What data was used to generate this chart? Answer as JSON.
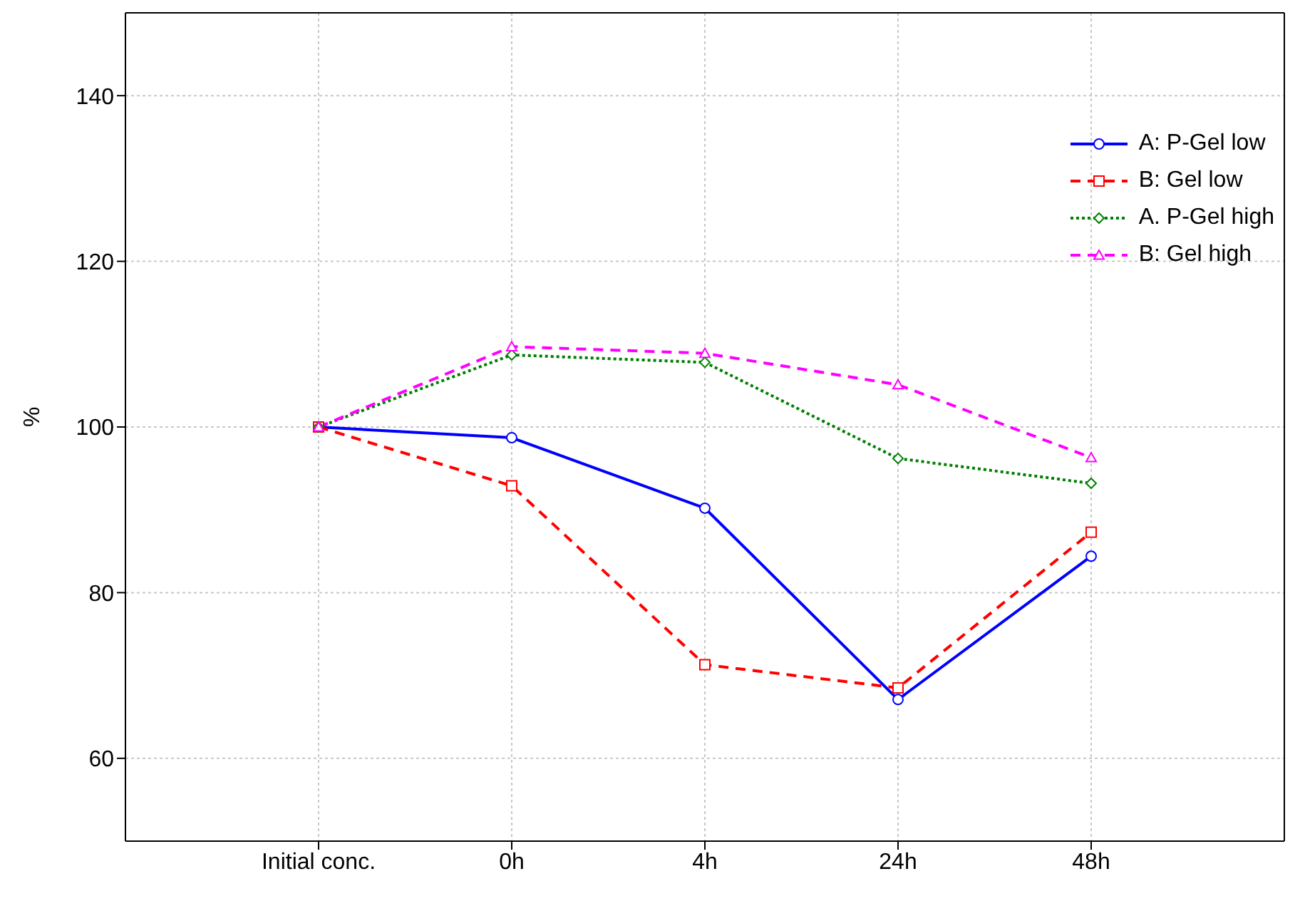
{
  "chart_data": {
    "type": "line",
    "ylabel": "%",
    "categories": [
      "Initial conc.",
      "0h",
      "4h",
      "24h",
      "48h"
    ],
    "ylim": [
      50,
      150
    ],
    "yticks": [
      60,
      80,
      100,
      120,
      140
    ],
    "grid": true,
    "legend": "top right",
    "series": [
      {
        "name": "A: P-Gel low",
        "color": "#0000ff",
        "marker": "circle",
        "line_style": "solid",
        "values": [
          100,
          98.7,
          90.2,
          67.1,
          84.4
        ]
      },
      {
        "name": "B: Gel low",
        "color": "#ff0000",
        "marker": "square",
        "line_style": "dashed",
        "values": [
          100,
          92.9,
          71.3,
          68.5,
          87.3
        ]
      },
      {
        "name": "A. P-Gel high",
        "color": "#008000",
        "marker": "diamond",
        "line_style": "dotted",
        "values": [
          100,
          108.7,
          107.8,
          96.2,
          93.2
        ]
      },
      {
        "name": "B: Gel high",
        "color": "#ff00ff",
        "marker": "triangle",
        "line_style": "dashed",
        "values": [
          100,
          109.7,
          108.9,
          105.1,
          96.3
        ]
      }
    ]
  }
}
